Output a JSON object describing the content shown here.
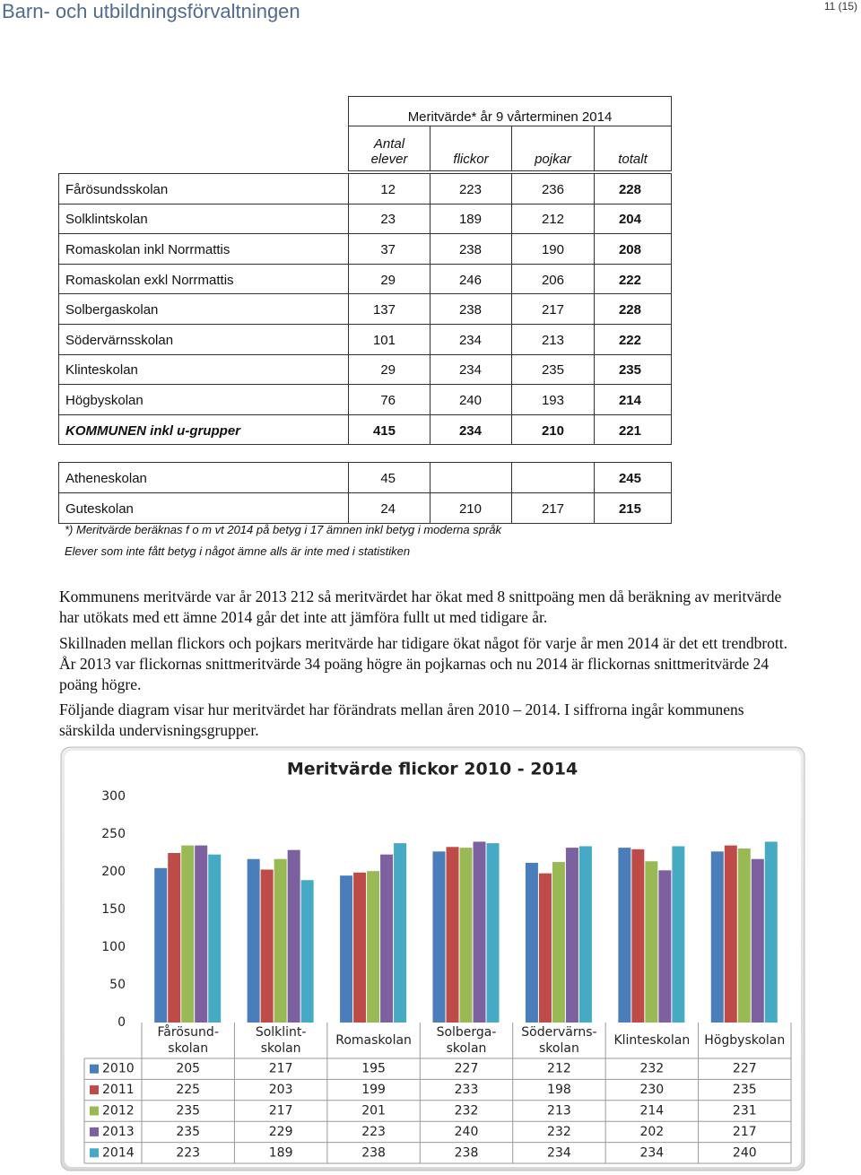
{
  "header": {
    "title": "Barn- och utbildningsförvaltningen",
    "page": "11 (15)"
  },
  "table": {
    "group_header": "Meritvärde* år 9 vårterminen 2014",
    "columns": [
      "Antal\nelever",
      "flickor",
      "pojkar",
      "totalt"
    ],
    "rows": [
      [
        "Fårösundsskolan",
        12,
        223,
        236,
        228
      ],
      [
        "Solklintskolan",
        23,
        189,
        212,
        204
      ],
      [
        "Romaskolan inkl Norrmattis",
        37,
        238,
        190,
        208
      ],
      [
        "Romaskolan exkl Norrmattis",
        29,
        246,
        206,
        222
      ],
      [
        "Solbergaskolan",
        137,
        238,
        217,
        228
      ],
      [
        "Södervärnsskolan",
        101,
        234,
        213,
        222
      ],
      [
        "Klinteskolan",
        29,
        234,
        235,
        235
      ],
      [
        "Högbyskolan",
        76,
        240,
        193,
        214
      ],
      [
        "KOMMUNEN inkl u-grupper",
        415,
        234,
        210,
        221
      ],
      [
        "Atheneskolan",
        45,
        null,
        null,
        245
      ],
      [
        "Guteskolan",
        24,
        210,
        217,
        215
      ]
    ],
    "notes": [
      "*) Meritvärde beräknas f o m vt 2014 på betyg i 17 ämnen inkl betyg i moderna språk",
      "Elever som inte fått betyg i något ämne alls är inte med i statistiken"
    ]
  },
  "paragraphs": [
    "Kommunens meritvärde var år 2013 212 så meritvärdet har ökat med 8 snittpoäng men då beräkning av meritvärde har utökats med ett ämne 2014 går det inte att jämföra fullt ut med tidigare år.",
    "Skillnaden mellan flickors och pojkars meritvärde har tidigare ökat något för varje år men 2014 är det ett trendbrott. År 2013 var flickornas snittmeritvärde 34 poäng högre än pojkarnas och nu 2014 är flickornas snittmeritvärde 24 poäng högre.",
    "Följande diagram visar hur meritvärdet har förändrats mellan åren 2010 – 2014. I siffrorna ingår kommunens särskilda undervisningsgrupper."
  ],
  "chart_data": {
    "type": "bar",
    "title": "Meritvärde flickor 2010 - 2014",
    "categories": [
      "Fårösund-\nskolan",
      "Solklint-\nskolan",
      "Romaskolan",
      "Solberga-\nskolan",
      "Södervärns-\nskolan",
      "Klinteskolan",
      "Högbyskolan"
    ],
    "series": [
      {
        "name": "2010",
        "color": "#4a7ebb",
        "values": [
          205,
          217,
          195,
          227,
          212,
          232,
          227
        ]
      },
      {
        "name": "2011",
        "color": "#be4b48",
        "values": [
          225,
          203,
          199,
          233,
          198,
          230,
          235
        ]
      },
      {
        "name": "2012",
        "color": "#98b954",
        "values": [
          235,
          217,
          201,
          232,
          213,
          214,
          231
        ]
      },
      {
        "name": "2013",
        "color": "#7d60a0",
        "values": [
          235,
          229,
          223,
          240,
          232,
          202,
          217
        ]
      },
      {
        "name": "2014",
        "color": "#46aac5",
        "values": [
          223,
          189,
          238,
          238,
          234,
          234,
          240
        ]
      }
    ],
    "ylim": [
      0,
      300
    ],
    "yticks": [
      0,
      50,
      100,
      150,
      200,
      250,
      300
    ],
    "grid": false
  }
}
